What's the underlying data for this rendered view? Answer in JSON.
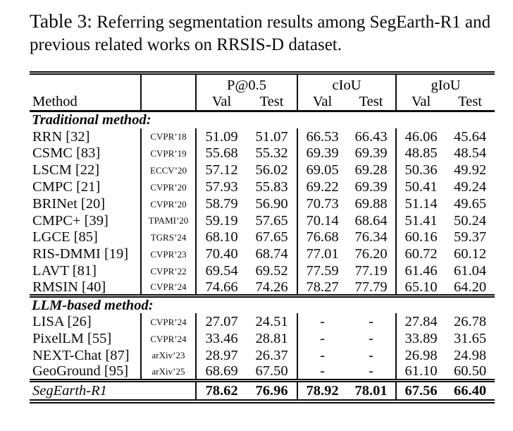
{
  "caption": {
    "label": "Table 3:",
    "text": "Referring segmentation results among SegEarth-R1 and previous related works on RRSIS-D dataset."
  },
  "table": {
    "header": {
      "method": "Method",
      "venue": "",
      "groups": [
        "P@0.5",
        "cIoU",
        "gIoU"
      ],
      "subcols": [
        "Val",
        "Test"
      ]
    },
    "sections": [
      {
        "title": "Traditional method:",
        "rows": [
          {
            "method": "RRN [32]",
            "venue": "CVPR’18",
            "values": [
              "51.09",
              "51.07",
              "66.53",
              "66.43",
              "46.06",
              "45.64"
            ]
          },
          {
            "method": "CSMC [83]",
            "venue": "CVPR’19",
            "values": [
              "55.68",
              "55.32",
              "69.39",
              "69.39",
              "48.85",
              "48.54"
            ]
          },
          {
            "method": "LSCM [22]",
            "venue": "ECCV’20",
            "values": [
              "57.12",
              "56.02",
              "69.05",
              "69.28",
              "50.36",
              "49.92"
            ]
          },
          {
            "method": "CMPC [21]",
            "venue": "CVPR’20",
            "values": [
              "57.93",
              "55.83",
              "69.22",
              "69.39",
              "50.41",
              "49.24"
            ]
          },
          {
            "method": "BRINet [20]",
            "venue": "CVPR’20",
            "values": [
              "58.79",
              "56.90",
              "70.73",
              "69.88",
              "51.14",
              "49.65"
            ]
          },
          {
            "method": "CMPC+ [39]",
            "venue": "TPAMI’20",
            "values": [
              "59.19",
              "57.65",
              "70.14",
              "68.64",
              "51.41",
              "50.24"
            ]
          },
          {
            "method": "LGCE [85]",
            "venue": "TGRS’24",
            "values": [
              "68.10",
              "67.65",
              "76.68",
              "76.34",
              "60.16",
              "59.37"
            ]
          },
          {
            "method": "RIS-DMMI [19]",
            "venue": "CVPR’23",
            "values": [
              "70.40",
              "68.74",
              "77.01",
              "76.20",
              "60.72",
              "60.12"
            ]
          },
          {
            "method": "LAVT [81]",
            "venue": "CVPR’22",
            "values": [
              "69.54",
              "69.52",
              "77.59",
              "77.19",
              "61.46",
              "61.04"
            ]
          },
          {
            "method": "RMSIN [40]",
            "venue": "CVPR’24",
            "values": [
              "74.66",
              "74.26",
              "78.27",
              "77.79",
              "65.10",
              "64.20"
            ]
          }
        ]
      },
      {
        "title": "LLM-based method:",
        "rows": [
          {
            "method": "LISA [26]",
            "venue": "CVPR’24",
            "values": [
              "27.07",
              "24.51",
              "-",
              "-",
              "27.84",
              "26.78"
            ]
          },
          {
            "method": "PixelLM [55]",
            "venue": "CVPR’24",
            "values": [
              "33.46",
              "28.81",
              "-",
              "-",
              "33.89",
              "31.65"
            ]
          },
          {
            "method": "NEXT-Chat [87]",
            "venue": "arXiv’23",
            "values": [
              "28.97",
              "26.37",
              "-",
              "-",
              "26.98",
              "24.98"
            ]
          },
          {
            "method": "GeoGround [95]",
            "venue": "arXiv’25",
            "values": [
              "68.69",
              "67.50",
              "-",
              "-",
              "61.10",
              "60.50"
            ]
          }
        ]
      }
    ],
    "final": {
      "method": "SegEarth-R1",
      "values": [
        "78.62",
        "76.96",
        "78.92",
        "78.01",
        "67.56",
        "66.40"
      ]
    }
  }
}
